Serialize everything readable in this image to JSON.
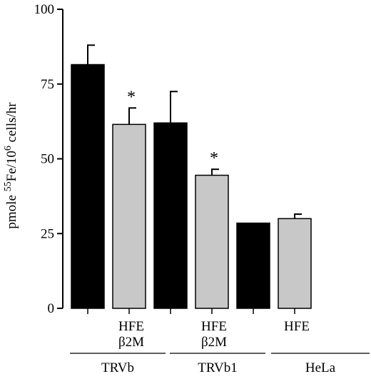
{
  "chart_data": {
    "type": "bar",
    "ylabel_parts": {
      "pre": "pmole ",
      "sup1": "55",
      "mid": "Fe/10",
      "sup2": "6",
      "post": " cells/hr"
    },
    "ylim": [
      0,
      100
    ],
    "yticks": [
      0,
      25,
      50,
      75,
      100
    ],
    "grid": false,
    "colors": {
      "control": "#000000",
      "transfected": "#c8c8c8"
    },
    "bars": [
      {
        "group": "TRVb",
        "label": [],
        "value": 81.5,
        "error": 6.5,
        "color": "control",
        "star": false
      },
      {
        "group": "TRVb",
        "label": [
          "HFE",
          "β2M"
        ],
        "value": 61.5,
        "error": 5.5,
        "color": "transfected",
        "star": true
      },
      {
        "group": "TRVb1",
        "label": [],
        "value": 62,
        "error": 10.5,
        "color": "control",
        "star": false
      },
      {
        "group": "TRVb1",
        "label": [
          "HFE",
          "β2M"
        ],
        "value": 44.5,
        "error": 2,
        "color": "transfected",
        "star": true
      },
      {
        "group": "HeLa",
        "label": [],
        "value": 28.5,
        "error": 0,
        "color": "control",
        "star": false
      },
      {
        "group": "HeLa",
        "label": [
          "HFE"
        ],
        "value": 30,
        "error": 1.5,
        "color": "transfected",
        "star": false
      }
    ],
    "groups": [
      "TRVb",
      "TRVb1",
      "HeLa"
    ],
    "star_symbol": "*"
  }
}
